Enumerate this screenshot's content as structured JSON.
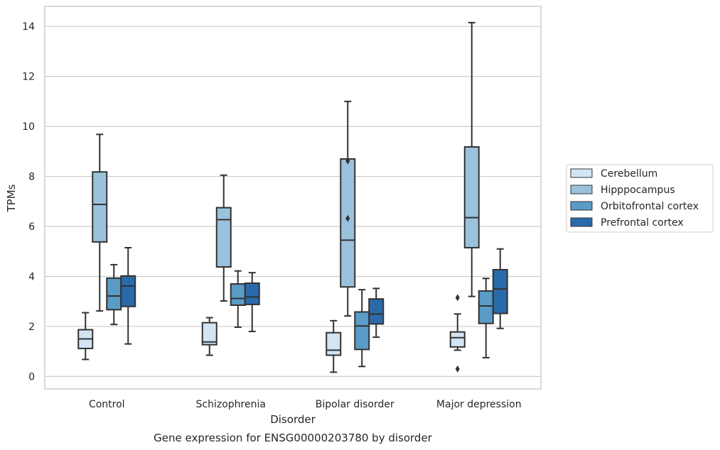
{
  "chart_data": {
    "type": "box",
    "title": "Gene expression for ENSG00000203780 by disorder",
    "xlabel": "Disorder",
    "ylabel": "TPMs",
    "ylim": [
      -0.5,
      14.8
    ],
    "yticks": [
      0,
      2,
      4,
      6,
      8,
      10,
      12,
      14
    ],
    "grid": true,
    "legend_position": "right",
    "categories": [
      "Control",
      "Schizophrenia",
      "Bipolar disorder",
      "Major depression"
    ],
    "series": [
      {
        "name": "Cerebellum",
        "color": "#d3e4f3",
        "boxes": [
          {
            "whislo": 0.68,
            "q1": 1.12,
            "med": 1.5,
            "q3": 1.87,
            "whishi": 2.55,
            "fliers": []
          },
          {
            "whislo": 0.85,
            "q1": 1.27,
            "med": 1.38,
            "q3": 2.15,
            "whishi": 2.35,
            "fliers": []
          },
          {
            "whislo": 0.17,
            "q1": 0.85,
            "med": 1.05,
            "q3": 1.75,
            "whishi": 2.23,
            "fliers": []
          },
          {
            "whislo": 1.05,
            "q1": 1.18,
            "med": 1.55,
            "q3": 1.78,
            "whishi": 2.5,
            "fliers": [
              0.3,
              3.15
            ]
          }
        ]
      },
      {
        "name": "Hipppocampus",
        "color": "#9ac2dc",
        "boxes": [
          {
            "whislo": 2.62,
            "q1": 5.38,
            "med": 6.88,
            "q3": 8.18,
            "whishi": 9.68,
            "fliers": []
          },
          {
            "whislo": 3.02,
            "q1": 4.38,
            "med": 6.27,
            "q3": 6.75,
            "whishi": 8.05,
            "fliers": []
          },
          {
            "whislo": 2.42,
            "q1": 3.58,
            "med": 5.45,
            "q3": 8.7,
            "whishi": 11.0,
            "fliers": [
              6.32,
              8.62
            ]
          },
          {
            "whislo": 3.2,
            "q1": 5.15,
            "med": 6.35,
            "q3": 9.18,
            "whishi": 14.15,
            "fliers": []
          }
        ]
      },
      {
        "name": "Orbitofrontal cortex",
        "color": "#5a9bc8",
        "boxes": [
          {
            "whislo": 2.08,
            "q1": 2.67,
            "med": 3.22,
            "q3": 3.93,
            "whishi": 4.47,
            "fliers": []
          },
          {
            "whislo": 1.97,
            "q1": 2.85,
            "med": 3.12,
            "q3": 3.7,
            "whishi": 4.22,
            "fliers": []
          },
          {
            "whislo": 0.4,
            "q1": 1.08,
            "med": 2.02,
            "q3": 2.58,
            "whishi": 3.47,
            "fliers": []
          },
          {
            "whislo": 0.75,
            "q1": 2.12,
            "med": 2.82,
            "q3": 3.42,
            "whishi": 3.92,
            "fliers": []
          }
        ]
      },
      {
        "name": "Prefrontal cortex",
        "color": "#2a6aaa",
        "boxes": [
          {
            "whislo": 1.3,
            "q1": 2.8,
            "med": 3.62,
            "q3": 4.02,
            "whishi": 5.15,
            "fliers": []
          },
          {
            "whislo": 1.8,
            "q1": 2.88,
            "med": 3.18,
            "q3": 3.73,
            "whishi": 4.15,
            "fliers": []
          },
          {
            "whislo": 1.57,
            "q1": 2.1,
            "med": 2.5,
            "q3": 3.1,
            "whishi": 3.52,
            "fliers": []
          },
          {
            "whislo": 1.92,
            "q1": 2.52,
            "med": 3.5,
            "q3": 4.27,
            "whishi": 5.1,
            "fliers": []
          }
        ]
      }
    ]
  }
}
